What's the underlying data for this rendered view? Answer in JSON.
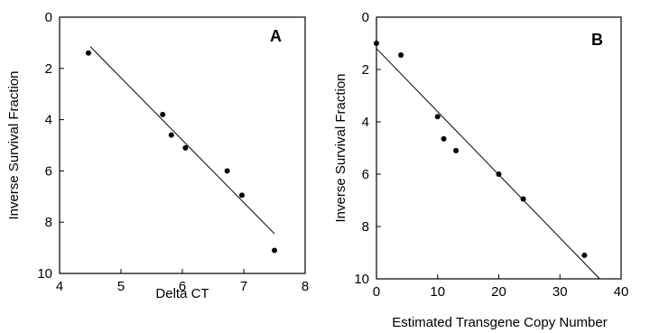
{
  "chart_data": [
    {
      "type": "scatter",
      "panel_label": "A",
      "xlabel": "Delta CT",
      "ylabel": "Inverse Survival Fraction",
      "xlim": [
        4,
        8
      ],
      "ylim": [
        0,
        10
      ],
      "y_inverted": true,
      "x_ticks": [
        4,
        5,
        6,
        7,
        8
      ],
      "y_ticks": [
        0,
        2,
        4,
        6,
        8,
        10
      ],
      "grid": false,
      "points": [
        {
          "x": 4.47,
          "y": 1.4
        },
        {
          "x": 5.68,
          "y": 3.8
        },
        {
          "x": 5.82,
          "y": 4.6
        },
        {
          "x": 6.05,
          "y": 5.1
        },
        {
          "x": 6.73,
          "y": 6.0
        },
        {
          "x": 6.97,
          "y": 6.95
        },
        {
          "x": 7.5,
          "y": 9.1
        }
      ],
      "fit_line": [
        {
          "x": 4.5,
          "y": 1.15
        },
        {
          "x": 7.5,
          "y": 8.45
        }
      ]
    },
    {
      "type": "scatter",
      "panel_label": "B",
      "xlabel": "Estimated Transgene Copy Number",
      "ylabel": "Inverse Survival Fraction",
      "xlim": [
        0,
        40
      ],
      "ylim": [
        0,
        10
      ],
      "y_inverted": true,
      "x_ticks": [
        0,
        10,
        20,
        30,
        40
      ],
      "y_ticks": [
        0,
        2,
        4,
        6,
        8,
        10
      ],
      "grid": false,
      "points": [
        {
          "x": 0,
          "y": 1.0
        },
        {
          "x": 4,
          "y": 1.45
        },
        {
          "x": 10,
          "y": 3.8
        },
        {
          "x": 11,
          "y": 4.65
        },
        {
          "x": 13,
          "y": 5.1
        },
        {
          "x": 20,
          "y": 6.0
        },
        {
          "x": 24,
          "y": 6.95
        },
        {
          "x": 34,
          "y": 9.1
        }
      ],
      "fit_line": [
        {
          "x": 0,
          "y": 1.2
        },
        {
          "x": 36.5,
          "y": 10.0
        }
      ]
    }
  ]
}
